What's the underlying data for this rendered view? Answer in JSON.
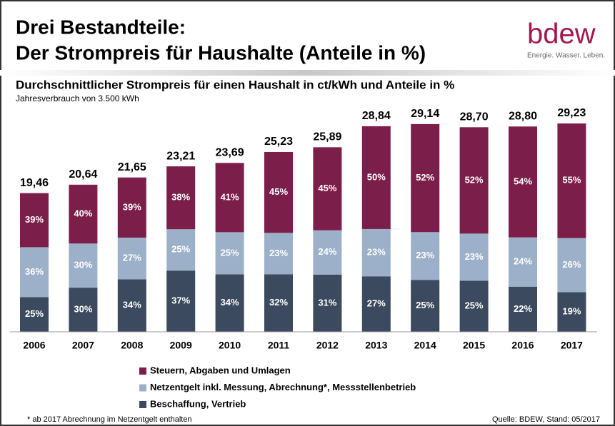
{
  "header": {
    "title_line1": "Drei Bestandteile:",
    "title_line2": "Der Strompreis für Haushalte (Anteile in %)",
    "logo": "bdew",
    "tagline": "Energie. Wasser. Leben."
  },
  "chart_data": {
    "type": "stacked_bar",
    "title": "Durchschnittlicher Strompreis für einen Haushalt in ct/kWh und Anteile in %",
    "subtitle": "Jahresverbrauch von 3.500 kWh",
    "categories": [
      "2006",
      "2007",
      "2008",
      "2009",
      "2010",
      "2011",
      "2012",
      "2013",
      "2014",
      "2015",
      "2016",
      "2017"
    ],
    "values": [
      19.46,
      20.64,
      21.65,
      23.21,
      23.69,
      25.23,
      25.89,
      28.84,
      29.14,
      28.7,
      28.8,
      29.23
    ],
    "value_labels": [
      "19,46",
      "20,64",
      "21,65",
      "23,21",
      "23,69",
      "25,23",
      "25,89",
      "28,84",
      "29,14",
      "28,70",
      "28,80",
      "29,23"
    ],
    "series": [
      {
        "name": "Beschaffung, Vertrieb",
        "color": "#3b4a5e",
        "values": [
          25,
          30,
          34,
          37,
          34,
          32,
          31,
          27,
          25,
          25,
          22,
          19
        ],
        "value_labels": [
          "25%",
          "30%",
          "34%",
          "37%",
          "34%",
          "32%",
          "31%",
          "27%",
          "25%",
          "25%",
          "22%",
          "19%"
        ]
      },
      {
        "name": "Netzentgelt inkl. Messung, Abrechnung*, Messstellenbetrieb",
        "color": "#9cb0c9",
        "values": [
          36,
          30,
          27,
          25,
          25,
          23,
          24,
          23,
          23,
          23,
          24,
          26
        ],
        "value_labels": [
          "36%",
          "30%",
          "27%",
          "25%",
          "25%",
          "23%",
          "24%",
          "23%",
          "23%",
          "23%",
          "24%",
          "26%"
        ]
      },
      {
        "name": "Steuern, Abgaben und Umlagen",
        "color": "#7c1e4a",
        "values": [
          39,
          40,
          39,
          38,
          41,
          45,
          45,
          50,
          52,
          52,
          54,
          55
        ],
        "value_labels": [
          "39%",
          "40%",
          "39%",
          "38%",
          "41%",
          "45%",
          "45%",
          "50%",
          "52%",
          "52%",
          "54%",
          "55%"
        ]
      }
    ]
  },
  "footer": {
    "note": "* ab 2017 Abrechnung  im Netzentgelt enthalten",
    "source": "Quelle: BDEW, Stand: 05/2017"
  }
}
